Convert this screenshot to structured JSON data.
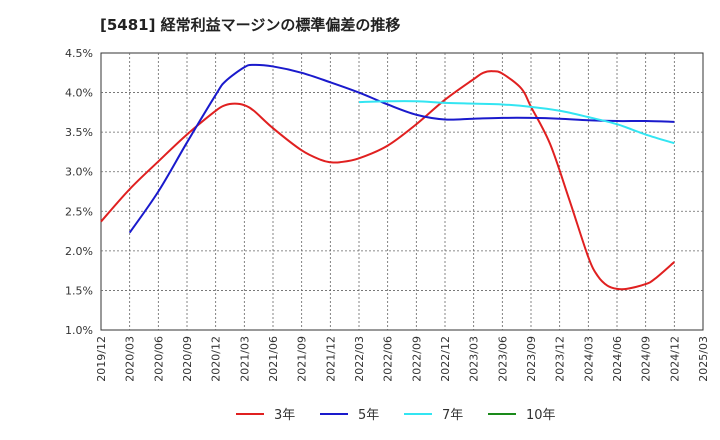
{
  "chart_data": {
    "type": "line",
    "title": "[5481]  経常利益マージンの標準偏差の推移",
    "xlabel": "",
    "ylabel": "",
    "ylim": [
      1.0,
      4.5
    ],
    "y_ticks": [
      "1.0%",
      "1.5%",
      "2.0%",
      "2.5%",
      "3.0%",
      "3.5%",
      "4.0%",
      "4.5%"
    ],
    "x_ticks": [
      "2019/12",
      "2020/03",
      "2020/06",
      "2020/09",
      "2020/12",
      "2021/03",
      "2021/06",
      "2021/09",
      "2021/12",
      "2022/03",
      "2022/06",
      "2022/09",
      "2022/12",
      "2023/03",
      "2023/06",
      "2023/09",
      "2023/12",
      "2024/03",
      "2024/06",
      "2024/09",
      "2024/12",
      "2025/03"
    ],
    "grid": true,
    "legend_position": "bottom",
    "series": [
      {
        "name": "3年",
        "color": "#e02020",
        "points": [
          [
            "2019/12",
            2.37
          ],
          [
            "2020/03",
            2.78
          ],
          [
            "2020/06",
            3.13
          ],
          [
            "2020/09",
            3.47
          ],
          [
            "2020/12",
            3.77
          ],
          [
            "2021/01",
            3.84
          ],
          [
            "2021/02",
            3.86
          ],
          [
            "2021/03",
            3.84
          ],
          [
            "2021/04",
            3.77
          ],
          [
            "2021/06",
            3.55
          ],
          [
            "2021/09",
            3.27
          ],
          [
            "2021/11",
            3.15
          ],
          [
            "2021/12",
            3.12
          ],
          [
            "2022/01",
            3.12
          ],
          [
            "2022/03",
            3.17
          ],
          [
            "2022/06",
            3.33
          ],
          [
            "2022/09",
            3.6
          ],
          [
            "2022/12",
            3.91
          ],
          [
            "2023/03",
            4.17
          ],
          [
            "2023/04",
            4.25
          ],
          [
            "2023/05",
            4.27
          ],
          [
            "2023/06",
            4.24
          ],
          [
            "2023/08",
            4.05
          ],
          [
            "2023/09",
            3.82
          ],
          [
            "2023/11",
            3.35
          ],
          [
            "2024/01",
            2.65
          ],
          [
            "2024/03",
            1.92
          ],
          [
            "2024/04",
            1.68
          ],
          [
            "2024/05",
            1.56
          ],
          [
            "2024/06",
            1.52
          ],
          [
            "2024/07",
            1.52
          ],
          [
            "2024/09",
            1.58
          ],
          [
            "2024/10",
            1.65
          ],
          [
            "2024/12",
            1.86
          ]
        ]
      },
      {
        "name": "5年",
        "color": "#1a1acc",
        "points": [
          [
            "2020/03",
            2.23
          ],
          [
            "2020/06",
            2.75
          ],
          [
            "2020/09",
            3.37
          ],
          [
            "2020/12",
            3.97
          ],
          [
            "2021/01",
            4.14
          ],
          [
            "2021/03",
            4.32
          ],
          [
            "2021/04",
            4.35
          ],
          [
            "2021/06",
            4.33
          ],
          [
            "2021/09",
            4.25
          ],
          [
            "2021/12",
            4.13
          ],
          [
            "2022/03",
            4.0
          ],
          [
            "2022/06",
            3.85
          ],
          [
            "2022/09",
            3.72
          ],
          [
            "2022/12",
            3.66
          ],
          [
            "2023/03",
            3.67
          ],
          [
            "2023/06",
            3.68
          ],
          [
            "2023/09",
            3.68
          ],
          [
            "2023/12",
            3.67
          ],
          [
            "2024/03",
            3.65
          ],
          [
            "2024/06",
            3.64
          ],
          [
            "2024/09",
            3.64
          ],
          [
            "2024/12",
            3.63
          ]
        ]
      },
      {
        "name": "7年",
        "color": "#33e5f2",
        "points": [
          [
            "2022/03",
            3.88
          ],
          [
            "2022/06",
            3.89
          ],
          [
            "2022/09",
            3.89
          ],
          [
            "2022/12",
            3.87
          ],
          [
            "2023/03",
            3.86
          ],
          [
            "2023/06",
            3.85
          ],
          [
            "2023/09",
            3.82
          ],
          [
            "2023/12",
            3.77
          ],
          [
            "2024/03",
            3.69
          ],
          [
            "2024/06",
            3.6
          ],
          [
            "2024/09",
            3.47
          ],
          [
            "2024/12",
            3.36
          ]
        ]
      },
      {
        "name": "10年",
        "color": "#1a8a1a",
        "points": []
      }
    ]
  }
}
